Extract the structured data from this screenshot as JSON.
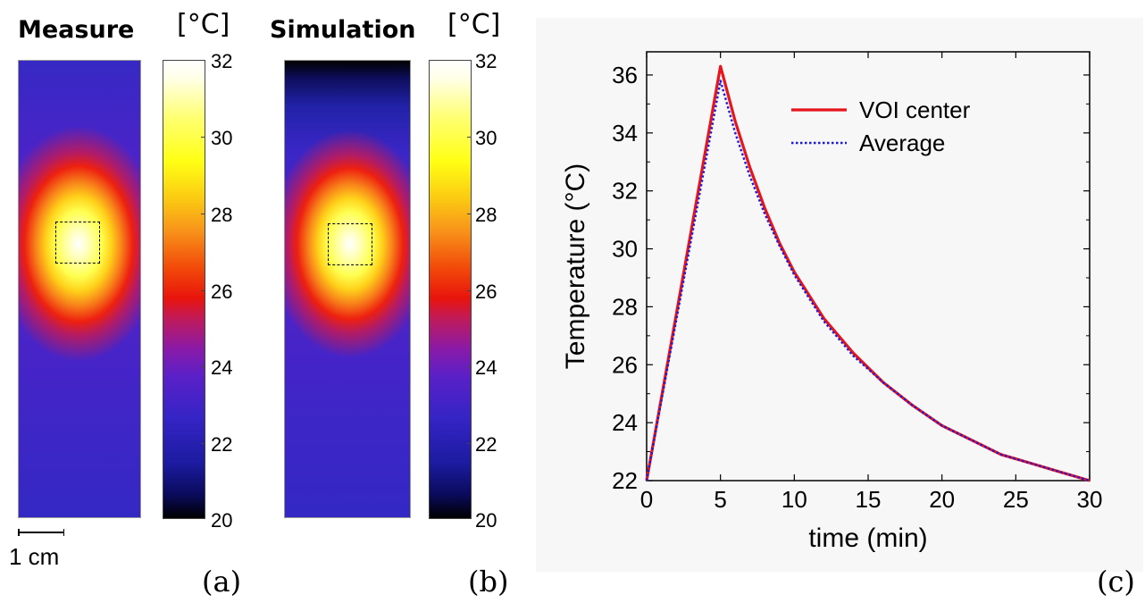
{
  "panels": {
    "a": {
      "title": "Measure",
      "unit": "[°C]",
      "colorbar_ticks": [
        "32",
        "30",
        "28",
        "26",
        "24",
        "22",
        "20"
      ],
      "scale_bar_label": "1 cm",
      "panel_label": "(a)"
    },
    "b": {
      "title": "Simulation",
      "unit": "[°C]",
      "colorbar_ticks": [
        "32",
        "30",
        "28",
        "26",
        "24",
        "22",
        "20"
      ],
      "panel_label": "(b)"
    },
    "c": {
      "panel_label": "(c)"
    }
  },
  "chart_data": [
    {
      "type": "heatmap",
      "title": "Measure",
      "colorbar_range": [
        20,
        32
      ],
      "colorbar_unit": "[°C]"
    },
    {
      "type": "heatmap",
      "title": "Simulation",
      "colorbar_range": [
        20,
        32
      ],
      "colorbar_unit": "[°C]"
    },
    {
      "type": "line",
      "xlabel": "time (min)",
      "ylabel": "Temperature (°C)",
      "xlim": [
        0,
        30
      ],
      "ylim": [
        22,
        36.8
      ],
      "xticks": [
        0,
        5,
        10,
        15,
        20,
        25,
        30
      ],
      "yticks": [
        22,
        24,
        26,
        28,
        30,
        32,
        34,
        36
      ],
      "legend_position": "top-right",
      "grid": false,
      "series": [
        {
          "name": "VOI center",
          "color": "#e8141c",
          "style": "solid",
          "x": [
            0,
            5,
            6,
            7,
            8,
            9,
            10,
            12,
            14,
            16,
            18,
            20,
            22,
            24,
            26,
            28,
            30
          ],
          "y": [
            22.0,
            36.3,
            34.4,
            32.8,
            31.4,
            30.2,
            29.2,
            27.6,
            26.4,
            25.4,
            24.6,
            23.9,
            23.4,
            22.9,
            22.6,
            22.3,
            22.0
          ]
        },
        {
          "name": "Average",
          "color": "#1a1adc",
          "style": "dotted",
          "x": [
            0,
            5,
            6,
            7,
            8,
            9,
            10,
            12,
            14,
            16,
            18,
            20,
            22,
            24,
            26,
            28,
            30
          ],
          "y": [
            22.0,
            35.8,
            34.0,
            32.5,
            31.2,
            30.1,
            29.1,
            27.5,
            26.3,
            25.4,
            24.6,
            23.9,
            23.4,
            22.9,
            22.6,
            22.3,
            22.0
          ]
        }
      ]
    }
  ]
}
